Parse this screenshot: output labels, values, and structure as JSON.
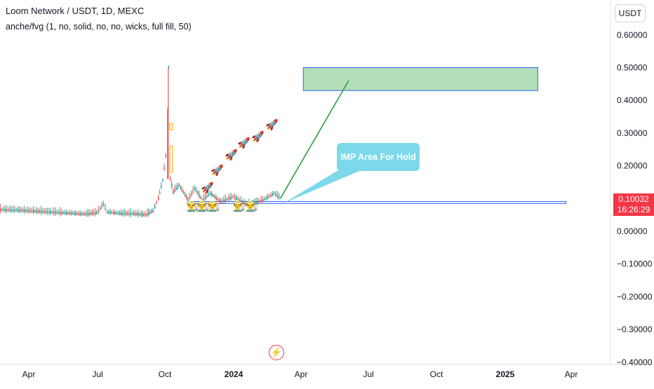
{
  "header": {
    "title": "Loom Network / USDT, 1D, MEXC",
    "indicator": "anche/fvg (1, no, solid, no, no, wicks, full fill, 50)",
    "unit_button": "USDT"
  },
  "price_badge": {
    "price": "0.10032",
    "countdown": "16:26:29"
  },
  "annotation": {
    "callout": "IMP Area For Hold"
  },
  "icons": {
    "replay": "lightning-icon",
    "rocket": "rocket-emoji",
    "farmer": "farmer-emoji"
  },
  "colors": {
    "up": "#26a69a",
    "down": "#ef5350",
    "accent_red": "#f23645",
    "target_fill": "#b2dfb7",
    "target_border": "#2962ff",
    "trend_line": "#2e9e3e",
    "callout_bg": "#7bd9ea"
  },
  "chart_data": {
    "type": "line",
    "title": "Loom Network / USDT, 1D, MEXC",
    "x_ticks": [
      "Apr",
      "Jul",
      "Oct",
      "2024",
      "Apr",
      "Jul",
      "Oct",
      "2025",
      "Apr"
    ],
    "y_ticks": [
      "0.60000",
      "0.50000",
      "0.40000",
      "0.30000",
      "0.20000",
      "0.10000",
      "0.00000",
      "−0.10000",
      "−0.20000",
      "−0.30000",
      "−0.40000"
    ],
    "ylim": [
      -0.4,
      0.65
    ],
    "series": [
      {
        "values": [
          [
            "2023-01-01",
            0.065
          ],
          [
            "2023-01-15",
            0.062
          ],
          [
            "2023-01-22",
            0.118
          ],
          [
            "2023-01-25",
            0.07
          ],
          [
            "2023-02-15",
            0.066
          ],
          [
            "2023-03-15",
            0.064
          ],
          [
            "2023-04-15",
            0.06
          ],
          [
            "2023-05-15",
            0.056
          ],
          [
            "2023-06-15",
            0.052
          ],
          [
            "2023-07-01",
            0.056
          ],
          [
            "2023-07-10",
            0.082
          ],
          [
            "2023-07-15",
            0.058
          ],
          [
            "2023-08-01",
            0.054
          ],
          [
            "2023-08-20",
            0.053
          ],
          [
            "2023-09-05",
            0.05
          ],
          [
            "2023-09-15",
            0.062
          ],
          [
            "2023-09-22",
            0.1
          ],
          [
            "2023-09-28",
            0.155
          ],
          [
            "2023-10-02",
            0.23
          ],
          [
            "2023-10-05",
            0.37
          ],
          [
            "2023-10-06",
            0.5
          ],
          [
            "2023-10-08",
            0.16
          ],
          [
            "2023-10-12",
            0.12
          ],
          [
            "2023-10-20",
            0.14
          ],
          [
            "2023-11-01",
            0.095
          ],
          [
            "2023-11-10",
            0.13
          ],
          [
            "2023-11-20",
            0.095
          ],
          [
            "2023-12-01",
            0.115
          ],
          [
            "2023-12-15",
            0.09
          ],
          [
            "2024-01-01",
            0.105
          ],
          [
            "2024-01-20",
            0.08
          ],
          [
            "2024-02-10",
            0.095
          ],
          [
            "2024-02-25",
            0.115
          ],
          [
            "2024-03-05",
            0.10032
          ]
        ]
      }
    ],
    "boxes": [
      {
        "label": "target zone",
        "x_start": "2024-04-05",
        "x_end": "2025-02-15",
        "y_low": 0.43,
        "y_high": 0.5
      },
      {
        "label": "fvg zone",
        "x_start": "2023-11-05",
        "x_end": "2025-03-25",
        "y_low": 0.085,
        "y_high": 0.091
      }
    ],
    "trend_line": {
      "from": [
        "2024-03-05",
        0.1
      ],
      "to": [
        "2024-06-05",
        0.46
      ]
    }
  }
}
